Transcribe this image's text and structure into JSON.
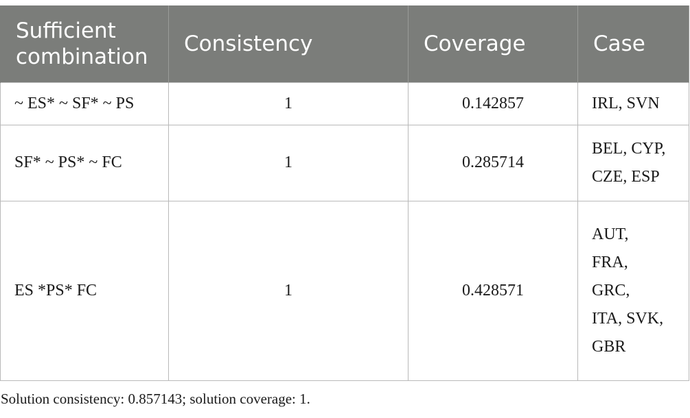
{
  "table": {
    "headers": {
      "combination": "Sufficient combination",
      "consistency": "Consistency",
      "coverage": "Coverage",
      "case": "Case"
    },
    "rows": [
      {
        "combination": "~ ES* ~ SF* ~ PS",
        "consistency": "1",
        "coverage": "0.142857",
        "case_lines": [
          "IRL, SVN"
        ]
      },
      {
        "combination": "SF* ~ PS* ~ FC",
        "consistency": "1",
        "coverage": "0.285714",
        "case_lines": [
          "BEL, CYP,",
          "CZE, ESP"
        ]
      },
      {
        "combination": "ES *PS* FC",
        "consistency": "1",
        "coverage": "0.428571",
        "case_lines": [
          "AUT,",
          "FRA,",
          "GRC,",
          "ITA, SVK,",
          "GBR"
        ]
      }
    ]
  },
  "footnote": "Solution consistency: 0.857143; solution coverage: 1."
}
